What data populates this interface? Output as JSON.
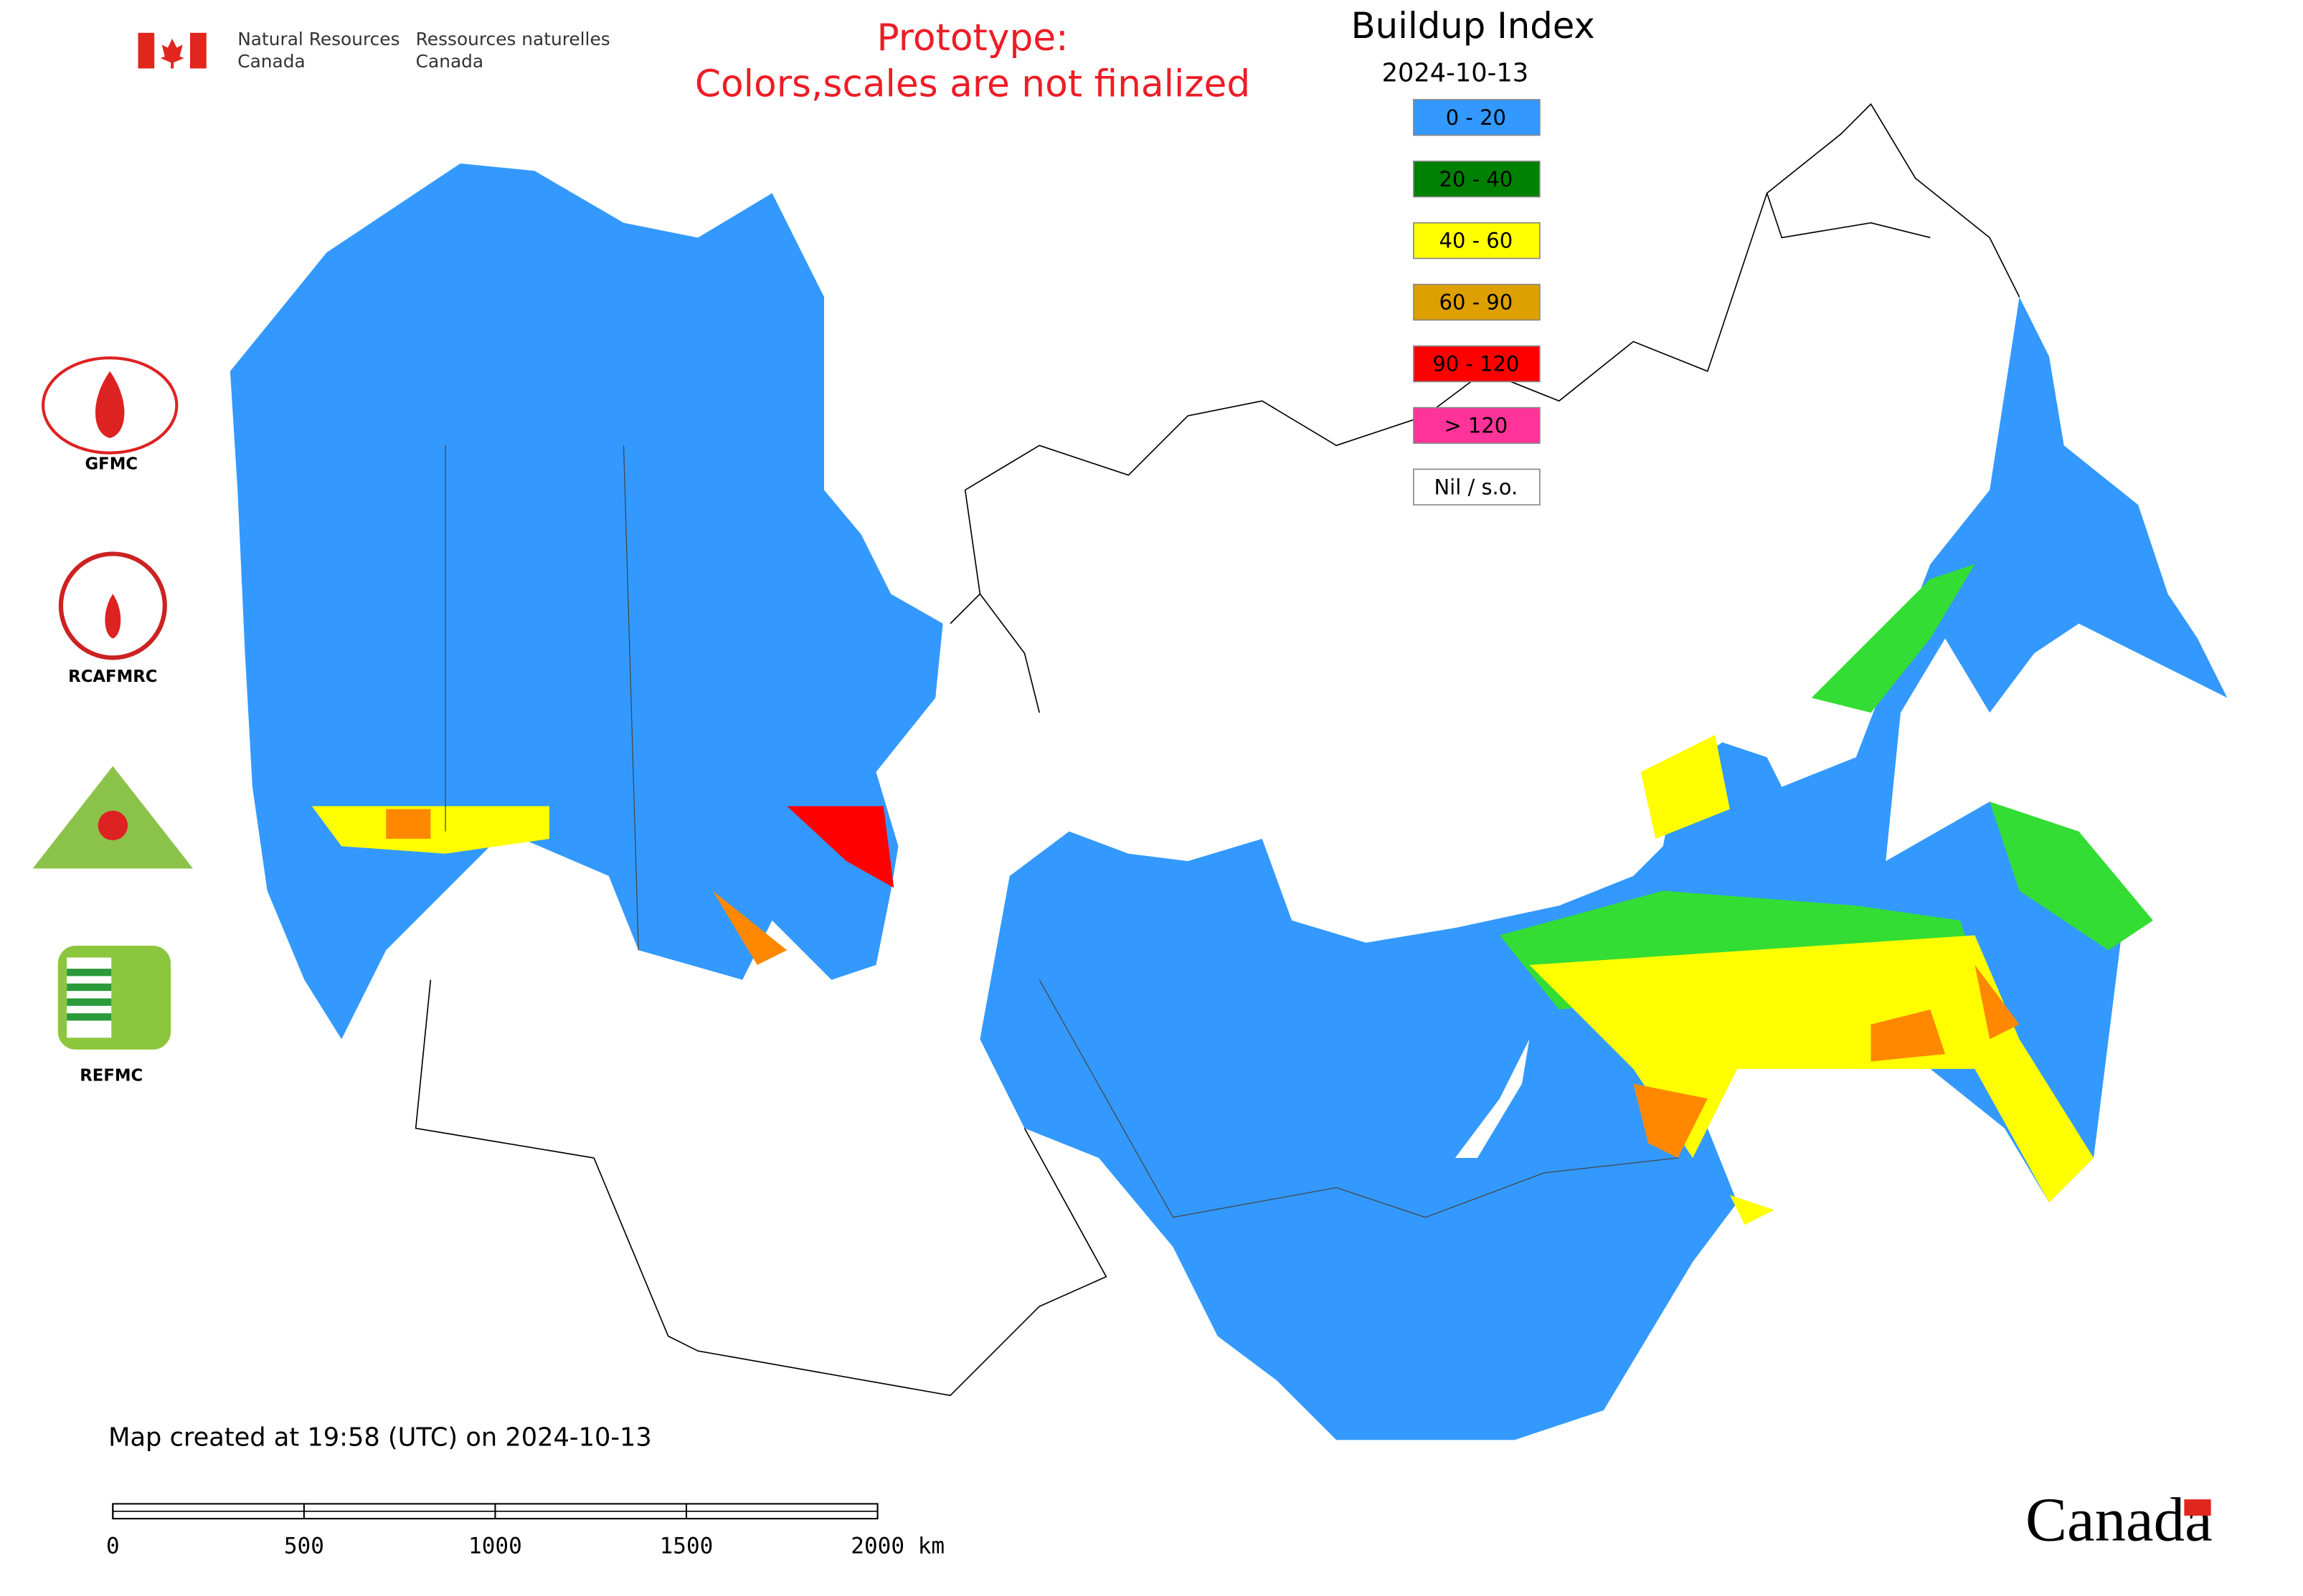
{
  "header": {
    "agency_en": [
      "Natural Resources",
      "Canada"
    ],
    "agency_fr": [
      "Ressources naturelles",
      "Canada"
    ],
    "notice": [
      "Prototype:",
      "Colors,scales are not finalized"
    ]
  },
  "legend": {
    "title": "Buildup Index",
    "date": "2024-10-13",
    "items": [
      {
        "label": "0 - 20",
        "color": "#3399ff"
      },
      {
        "label": "20 - 40",
        "color": "#008000"
      },
      {
        "label": "40 - 60",
        "color": "#ffff00"
      },
      {
        "label": "60 - 90",
        "color": "#dda000"
      },
      {
        "label": "90 - 120",
        "color": "#ff0000"
      },
      {
        "label": "> 120",
        "color": "#ff3399"
      },
      {
        "label": "Nil / s.o.",
        "color": "#ffffff"
      }
    ]
  },
  "logos": [
    "GFMC",
    "RCAFMRC",
    "REFMC"
  ],
  "footer": {
    "created": "Map created at 19:58 (UTC) on 2024-10-13",
    "wordmark": "Canada"
  },
  "scale_bar": {
    "ticks": [
      0,
      500,
      1000,
      1500,
      {
        "value": 2000,
        "label": "2000 km"
      }
    ]
  }
}
